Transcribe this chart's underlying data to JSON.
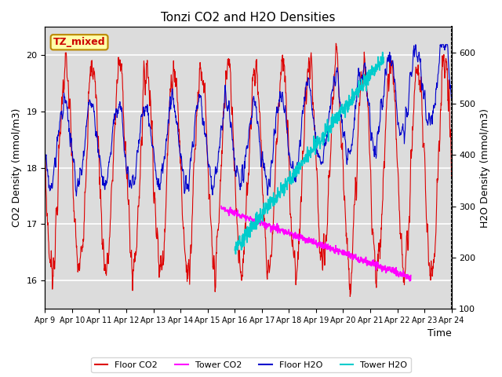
{
  "title": "Tonzi CO2 and H2O Densities",
  "xlabel": "Time",
  "ylabel_left": "CO2 Density (mmol/m3)",
  "ylabel_right": "H2O Density (mmol/m3)",
  "annotation_text": "TZ_mixed",
  "annotation_facecolor": "#FFFFAA",
  "annotation_edgecolor": "#BB8800",
  "annotation_textcolor": "#CC0000",
  "ylim_left": [
    15.5,
    20.5
  ],
  "ylim_right": [
    100,
    650
  ],
  "xtick_labels": [
    "Apr 9",
    "Apr 10",
    "Apr 11",
    "Apr 12",
    "Apr 13",
    "Apr 14",
    "Apr 15",
    "Apr 16",
    "Apr 17",
    "Apr 18",
    "Apr 19",
    "Apr 20",
    "Apr 21",
    "Apr 22",
    "Apr 23",
    "Apr 24"
  ],
  "colors": {
    "floor_co2": "#DD0000",
    "tower_co2": "#FF00FF",
    "floor_h2o": "#0000CC",
    "tower_h2o": "#00CCCC"
  },
  "legend_labels": [
    "Floor CO2",
    "Tower CO2",
    "Floor H2O",
    "Tower H2O"
  ],
  "background_color": "#DCDCDC",
  "grid_color": "white",
  "n_days": 15,
  "pts_per_day": 96,
  "seed": 7
}
